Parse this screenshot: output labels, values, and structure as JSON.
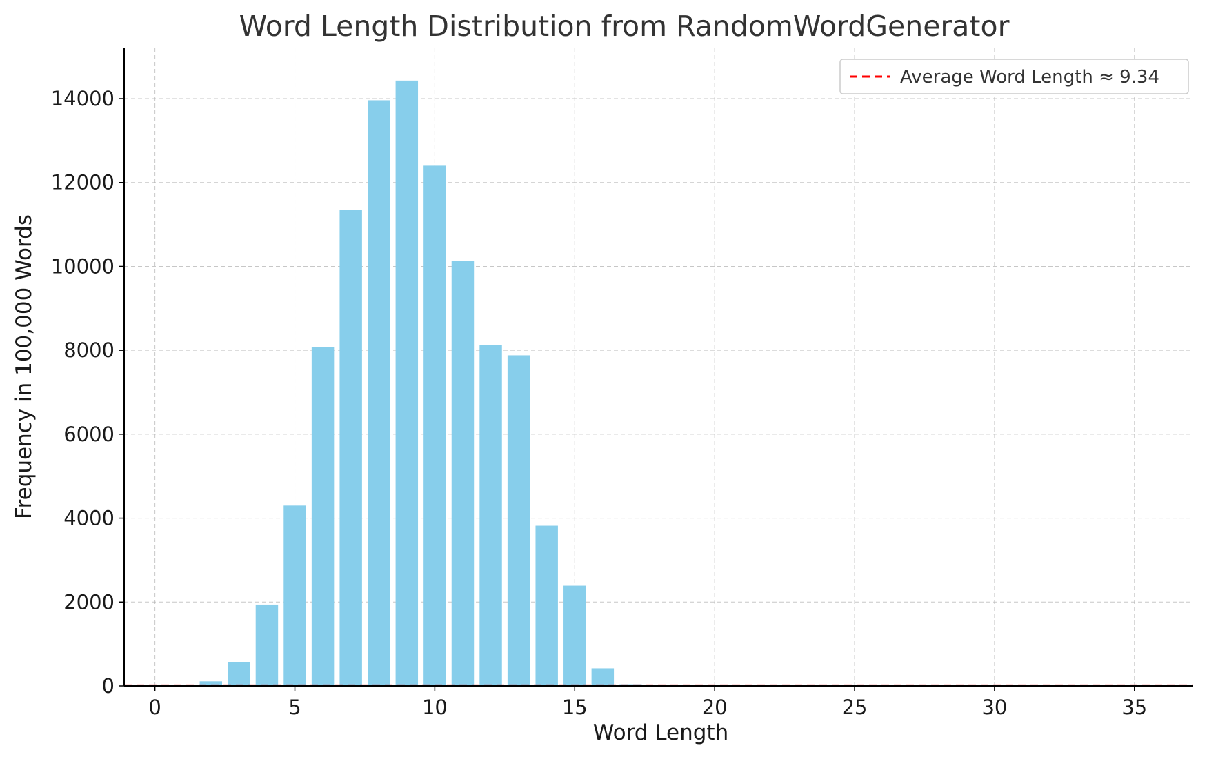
{
  "chart_data": {
    "type": "bar",
    "title": "Word Length Distribution from RandomWordGenerator",
    "xlabel": "Word Length",
    "ylabel": "Frequency in 100,000 Words",
    "xlim": [
      -1.1,
      37.1
    ],
    "ylim": [
      0,
      15200
    ],
    "x_ticks": [
      0,
      5,
      10,
      15,
      20,
      25,
      30,
      35
    ],
    "y_ticks": [
      0,
      2000,
      4000,
      6000,
      8000,
      10000,
      12000,
      14000
    ],
    "grid": true,
    "legend_position": "top-right",
    "bar_color": "#87CEEB",
    "x": [
      1,
      2,
      3,
      4,
      5,
      6,
      7,
      8,
      9,
      10,
      11,
      12,
      13,
      14,
      15,
      16,
      17,
      18
    ],
    "values": [
      8,
      110,
      570,
      1940,
      4300,
      8070,
      11350,
      13960,
      14430,
      12400,
      10130,
      8130,
      7880,
      3820,
      2390,
      420,
      40,
      10
    ],
    "reference_line": {
      "label": "Average Word Length ≈ 9.34",
      "orientation": "horizontal",
      "y": 9.34,
      "color": "#FF0000",
      "style": "dashed"
    }
  }
}
